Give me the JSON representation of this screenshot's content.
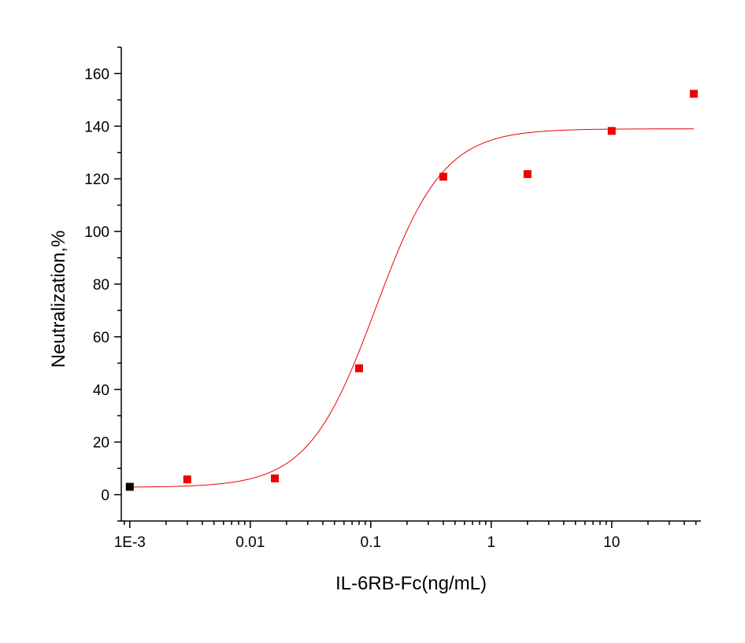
{
  "chart_data": {
    "type": "scatter",
    "xlabel": "IL-6RB-Fc(ng/mL)",
    "ylabel": "Neutralization,%",
    "xscale": "log",
    "xlim": [
      0.00085,
      55
    ],
    "ylim": [
      -10,
      170
    ],
    "x_ticks": [
      {
        "value": 0.001,
        "label": "1E-3"
      },
      {
        "value": 0.01,
        "label": "0.01"
      },
      {
        "value": 0.1,
        "label": "0.1"
      },
      {
        "value": 1,
        "label": "1"
      },
      {
        "value": 10,
        "label": "10"
      }
    ],
    "y_ticks": [
      {
        "value": 0,
        "label": "0"
      },
      {
        "value": 20,
        "label": "20"
      },
      {
        "value": 40,
        "label": "40"
      },
      {
        "value": 60,
        "label": "60"
      },
      {
        "value": 80,
        "label": "80"
      },
      {
        "value": 100,
        "label": "100"
      },
      {
        "value": 120,
        "label": "120"
      },
      {
        "value": 140,
        "label": "140"
      },
      {
        "value": 160,
        "label": "160"
      }
    ],
    "grid": false,
    "legend": "none",
    "series": [
      {
        "marker": "square",
        "color": "#ee0000",
        "points": [
          {
            "x": 0.001,
            "y": 3.0,
            "color": "#000000"
          },
          {
            "x": 0.003,
            "y": 5.8
          },
          {
            "x": 0.016,
            "y": 6.2
          },
          {
            "x": 0.08,
            "y": 48.0
          },
          {
            "x": 0.4,
            "y": 120.8
          },
          {
            "x": 2.0,
            "y": 121.8
          },
          {
            "x": 10.0,
            "y": 138.2
          },
          {
            "x": 48.0,
            "y": 152.3
          }
        ]
      }
    ],
    "fit_curve": {
      "type": "4PL",
      "color": "#ee0000",
      "bottom": 2.8,
      "top": 139.0,
      "ec50": 0.11,
      "hill": 1.55,
      "x_range": [
        0.001,
        48.0
      ]
    }
  }
}
